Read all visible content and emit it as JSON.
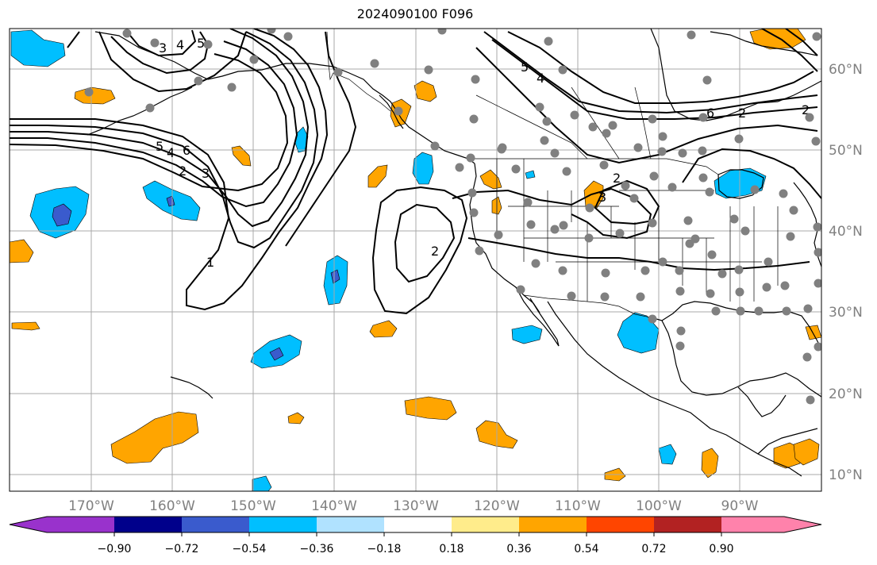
{
  "title": "2024090100 F096",
  "lon_labels": [
    "170°W",
    "160°W",
    "150°W",
    "140°W",
    "130°W",
    "120°W",
    "110°W",
    "100°W",
    "90°W"
  ],
  "lat_labels": [
    "60°N",
    "50°N",
    "40°N",
    "30°N",
    "20°N",
    "10°N"
  ],
  "colorbar": {
    "tick_labels": [
      "−0.90",
      "−0.72",
      "−0.54",
      "−0.36",
      "−0.18",
      "0.18",
      "0.36",
      "0.54",
      "0.72",
      "0.90"
    ],
    "colors": [
      "#9932cc",
      "#00008b",
      "#3a5bcd",
      "#00bfff",
      "#b0e2ff",
      "#ffffff",
      "#ffec8b",
      "#ffa500",
      "#ff4500",
      "#b22222",
      "#ff82ab"
    ]
  },
  "contour_labels": [
    "5",
    "4",
    "3",
    "4",
    "6",
    "5",
    "2",
    "5",
    "4",
    "6",
    "2",
    "3",
    "1",
    "2",
    "2",
    "3",
    "2"
  ],
  "colors": {
    "blue_anomaly": "#00bfff",
    "dark_blue_anomaly": "#3a5bcd",
    "orange_anomaly": "#ffa500",
    "station_dot": "#808080",
    "grid": "#a9a9a9"
  }
}
